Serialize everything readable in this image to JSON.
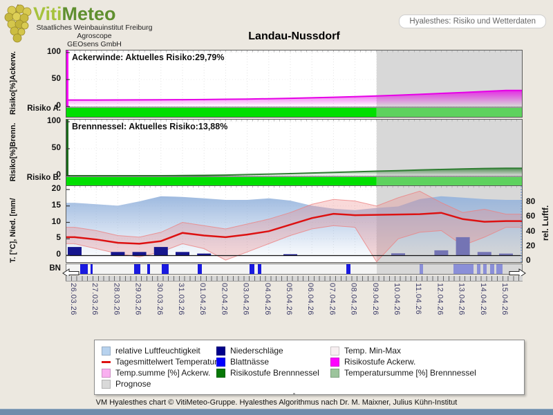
{
  "app": {
    "background": "#ECE8E0",
    "statusbar_color": "#6E8CAB",
    "header": {
      "brand_part1": "Viti",
      "brand_part2": "Meteo",
      "brand_color1": "#A6C23C",
      "brand_color2": "#5F8F2F",
      "sublines": [
        "Staatliches Weinbauinstitut Freiburg",
        "Agroscope",
        "GEOsens GmbH"
      ],
      "widget_label": "Hyalesthes: Risiko und Wetterdaten"
    },
    "title": "Landau-Nussdorf",
    "footer_dash": "-",
    "footer_credit": "VM Hyalesthes chart © VitiMeteo-Gruppe. Hyalesthes Algorithmus nach Dr. M. Maixner, Julius Kühn-Institut"
  },
  "legend": {
    "columns": [
      [
        {
          "label": "relative Luftfeuchtigkeit",
          "swatch": "#B7D2EE",
          "type": "box"
        },
        {
          "label": "Tagesmittelwert Temperatur",
          "swatch": "#DD1111",
          "type": "line"
        },
        {
          "label": "Temp.summe [%] Ackerw.",
          "swatch": "#F9AFF0",
          "type": "box"
        },
        {
          "label": "Prognose",
          "swatch": "#D9D9D9",
          "type": "box"
        }
      ],
      [
        {
          "label": "Niederschläge",
          "swatch": "#00008B",
          "type": "box"
        },
        {
          "label": "Blattnässe",
          "swatch": "#0000FF",
          "type": "box"
        },
        {
          "label": "Risikostufe Brennnessel",
          "swatch": "#067806",
          "type": "box"
        }
      ],
      [
        {
          "label": "Temp. Min-Max",
          "swatch": "#F7EFF1",
          "type": "box"
        },
        {
          "label": "Risikostufe Ackerw.",
          "swatch": "#FF00FF",
          "type": "box"
        },
        {
          "label": "Temperatursumme [%] Brennnessel",
          "swatch": "#9CC49C",
          "type": "box"
        }
      ]
    ]
  },
  "chart_data": {
    "x_categories": [
      "26.03.26",
      "27.03.26",
      "28.03.26",
      "29.03.26",
      "30.03.26",
      "31.03.26",
      "01.04.26",
      "02.04.26",
      "03.04.26",
      "04.04.26",
      "05.04.26",
      "06.04.26",
      "07.04.26",
      "08.04.26",
      "09.04.26",
      "10.04.26",
      "11.04.26",
      "12.04.26",
      "13.04.26",
      "14.04.26",
      "15.04.26"
    ],
    "forecast_start_index": 14,
    "forecast_fill": "#D8D8D8",
    "panels": [
      {
        "id": "ackerwinde",
        "type": "area",
        "title": "Ackerwinde: Aktuelles Risiko:29,79%",
        "ylabel": "Risiko[%]Ackerw.",
        "row_label": "Risiko A.",
        "yticks": [
          100,
          50,
          0
        ],
        "ylim": [
          0,
          100
        ],
        "line_color": "#E600E6",
        "axis_color": "#FF00FF",
        "values": [
          12.0,
          12.1,
          12.2,
          12.3,
          12.5,
          12.7,
          13.0,
          13.4,
          13.9,
          14.5,
          15.3,
          16.2,
          17.2,
          18.3,
          19.5,
          21.0,
          22.6,
          24.3,
          26.0,
          27.9,
          29.79
        ],
        "current_risk_pct": "29,79%",
        "risk_band": {
          "past_color": "#00DF00",
          "forecast_color": "#5ED25E"
        }
      },
      {
        "id": "brennnessel",
        "type": "area",
        "title": "Brennnessel: Aktuelles Risiko:13,88%",
        "ylabel": "Risiko[%]Brenn.",
        "row_label": "Risiko B.",
        "yticks": [
          100,
          50,
          0
        ],
        "ylim": [
          0,
          100
        ],
        "line_color": "#2F7D32",
        "axis_color": "#1C6B1C",
        "values": [
          0,
          0,
          0,
          0,
          0,
          0.2,
          0.6,
          1.2,
          2.0,
          2.9,
          3.9,
          5.0,
          6.1,
          7.2,
          8.3,
          9.4,
          10.5,
          11.6,
          12.6,
          13.3,
          13.88
        ],
        "current_risk_pct": "13,88%",
        "risk_band": {
          "past_color": "#00DF00",
          "forecast_color": "#5ED25E"
        }
      },
      {
        "id": "weather",
        "type": "mixed",
        "ylabel": "T. [°C], Nied. [mm/",
        "yticks_left": [
          20,
          15,
          10,
          5,
          0
        ],
        "ylim_left": [
          0,
          20
        ],
        "ylabel_right": "rel. Luftf.",
        "yticks_right": [
          80,
          60,
          40,
          20,
          0
        ],
        "ylim_right": [
          0,
          100
        ],
        "series": [
          {
            "name": "relative Luftfeuchtigkeit",
            "type": "area",
            "axis": "right",
            "color": "#93B2DC",
            "values": [
              80,
              78,
              76,
              82,
              89,
              88,
              86,
              84,
              84,
              86,
              83,
              76,
              72,
              70,
              73,
              75,
              85,
              89,
              87,
              85,
              84
            ]
          },
          {
            "name": "Temp. Min-Max",
            "type": "band",
            "axis": "left",
            "color": "#EC8282",
            "max": [
              8.5,
              7.5,
              6,
              5.5,
              7,
              10,
              9,
              8,
              9.5,
              11,
              13,
              15.5,
              17,
              16.5,
              15,
              17.5,
              19.5,
              16,
              13,
              14,
              12.5
            ],
            "min": [
              3.5,
              2,
              0.5,
              -0.5,
              1,
              3.5,
              2,
              -1.5,
              1,
              3.5,
              6,
              8,
              9,
              8.5,
              -2,
              5,
              7,
              7.5,
              3,
              5.5,
              8.5
            ]
          },
          {
            "name": "Tagesmittelwert Temperatur",
            "type": "line",
            "axis": "left",
            "color": "#DD1111",
            "values": [
              5.5,
              4.8,
              3.8,
              3.5,
              4.3,
              6.8,
              6.0,
              5.5,
              6.3,
              7.3,
              9.3,
              11.3,
              12.6,
              12.2,
              12.3,
              12.4,
              12.5,
              12.9,
              11.0,
              10.2,
              10.4
            ]
          },
          {
            "name": "Niederschläge",
            "type": "bar",
            "axis": "left",
            "color": "#16168E",
            "forecast_color": "#7474B4",
            "values": [
              2.5,
              0,
              1,
              1,
              2.5,
              1,
              0.5,
              0,
              0,
              0,
              0.3,
              0,
              0,
              0,
              0,
              0.6,
              0,
              1.5,
              5.5,
              1,
              0.5
            ]
          }
        ]
      }
    ],
    "leaf_wetness": {
      "row_label": "BN",
      "color": "#1A1AE0",
      "forecast_color": "#8A8FD8",
      "segments": [
        [
          0.25,
          0.35
        ],
        [
          0.72,
          0.1
        ],
        [
          2.75,
          0.3
        ],
        [
          3.35,
          0.15
        ],
        [
          4.05,
          0.3
        ],
        [
          5.7,
          0.2
        ],
        [
          8.1,
          0.25
        ],
        [
          8.5,
          0.15
        ],
        [
          12.6,
          0.2
        ],
        [
          16.0,
          0.15
        ],
        [
          17.55,
          0.95
        ],
        [
          18.65,
          0.15
        ],
        [
          18.95,
          0.15
        ],
        [
          19.25,
          0.2
        ],
        [
          19.55,
          0.3
        ]
      ]
    }
  }
}
